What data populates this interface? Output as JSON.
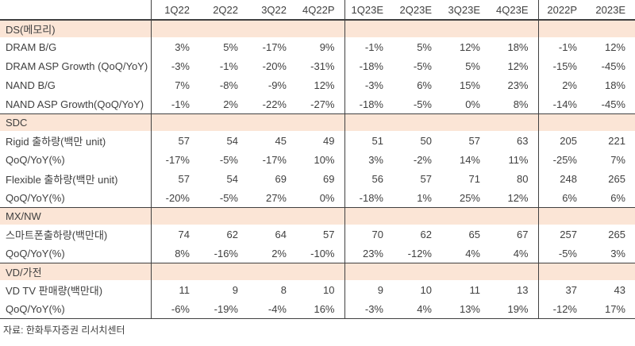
{
  "table": {
    "columns": [
      "1Q22",
      "2Q22",
      "3Q22",
      "4Q22P",
      "1Q23E",
      "2Q23E",
      "3Q23E",
      "4Q23E",
      "2022P",
      "2023E"
    ],
    "sections": [
      {
        "label": "DS(메모리)",
        "rows": [
          {
            "label": "DRAM B/G",
            "values": [
              "3%",
              "5%",
              "-17%",
              "9%",
              "-1%",
              "5%",
              "12%",
              "18%",
              "-1%",
              "12%"
            ]
          },
          {
            "label": "DRAM ASP Growth (QoQ/YoY)",
            "values": [
              "-3%",
              "-1%",
              "-20%",
              "-31%",
              "-18%",
              "-5%",
              "5%",
              "12%",
              "-15%",
              "-45%"
            ]
          },
          {
            "label": "NAND B/G",
            "values": [
              "7%",
              "-8%",
              "-9%",
              "12%",
              "-3%",
              "6%",
              "15%",
              "23%",
              "2%",
              "18%"
            ]
          },
          {
            "label": "NAND ASP Growth(QoQ/YoY)",
            "values": [
              "-1%",
              "2%",
              "-22%",
              "-27%",
              "-18%",
              "-5%",
              "0%",
              "8%",
              "-14%",
              "-45%"
            ]
          }
        ]
      },
      {
        "label": "SDC",
        "rows": [
          {
            "label": "Rigid 출하량(백만 unit)",
            "values": [
              "57",
              "54",
              "45",
              "49",
              "51",
              "50",
              "57",
              "63",
              "205",
              "221"
            ]
          },
          {
            "label": "QoQ/YoY(%)",
            "values": [
              "-17%",
              "-5%",
              "-17%",
              "10%",
              "3%",
              "-2%",
              "14%",
              "11%",
              "-25%",
              "7%"
            ]
          },
          {
            "label": "Flexible 출하량(백만 unit)",
            "values": [
              "57",
              "54",
              "69",
              "69",
              "56",
              "57",
              "71",
              "80",
              "248",
              "265"
            ]
          },
          {
            "label": "QoQ/YoY(%)",
            "values": [
              "-20%",
              "-5%",
              "27%",
              "0%",
              "-18%",
              "1%",
              "25%",
              "12%",
              "6%",
              "6%"
            ]
          }
        ]
      },
      {
        "label": "MX/NW",
        "rows": [
          {
            "label": "스마트폰출하량(백만대)",
            "values": [
              "74",
              "62",
              "64",
              "57",
              "70",
              "62",
              "65",
              "67",
              "257",
              "265"
            ]
          },
          {
            "label": "QoQ/YoY(%)",
            "values": [
              "8%",
              "-16%",
              "2%",
              "-10%",
              "23%",
              "-12%",
              "4%",
              "4%",
              "-5%",
              "3%"
            ]
          }
        ]
      },
      {
        "label": "VD/가전",
        "rows": [
          {
            "label": "VD TV 판매량(백만대)",
            "values": [
              "11",
              "9",
              "8",
              "10",
              "9",
              "10",
              "11",
              "13",
              "37",
              "43"
            ]
          },
          {
            "label": "QoQ/YoY(%)",
            "values": [
              "-6%",
              "-19%",
              "-4%",
              "16%",
              "-3%",
              "4%",
              "13%",
              "19%",
              "-12%",
              "17%"
            ]
          }
        ]
      }
    ]
  },
  "source": "자료: 한화투자증권 리서치센터",
  "colors": {
    "section_band": "#fbe5d6",
    "border_dark": "#404040",
    "text": "#3f3f3f",
    "background": "#ffffff"
  }
}
